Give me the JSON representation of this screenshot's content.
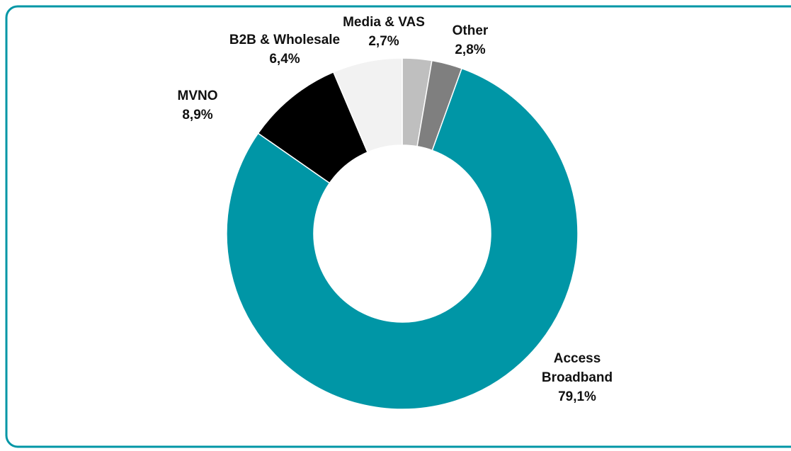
{
  "chart_data": {
    "type": "donut",
    "categories": [
      "Media & VAS",
      "Other",
      "Access Broadband",
      "MVNO",
      "B2B & Wholesale"
    ],
    "values": [
      2.7,
      2.8,
      79.1,
      8.9,
      6.4
    ],
    "value_labels": [
      "2,7%",
      "2,8%",
      "79,1%",
      "8,9%",
      "6,4%"
    ],
    "colors": [
      "#bfbfbf",
      "#7f7f7f",
      "#0096a6",
      "#000000",
      "#f2f2f2"
    ]
  }
}
